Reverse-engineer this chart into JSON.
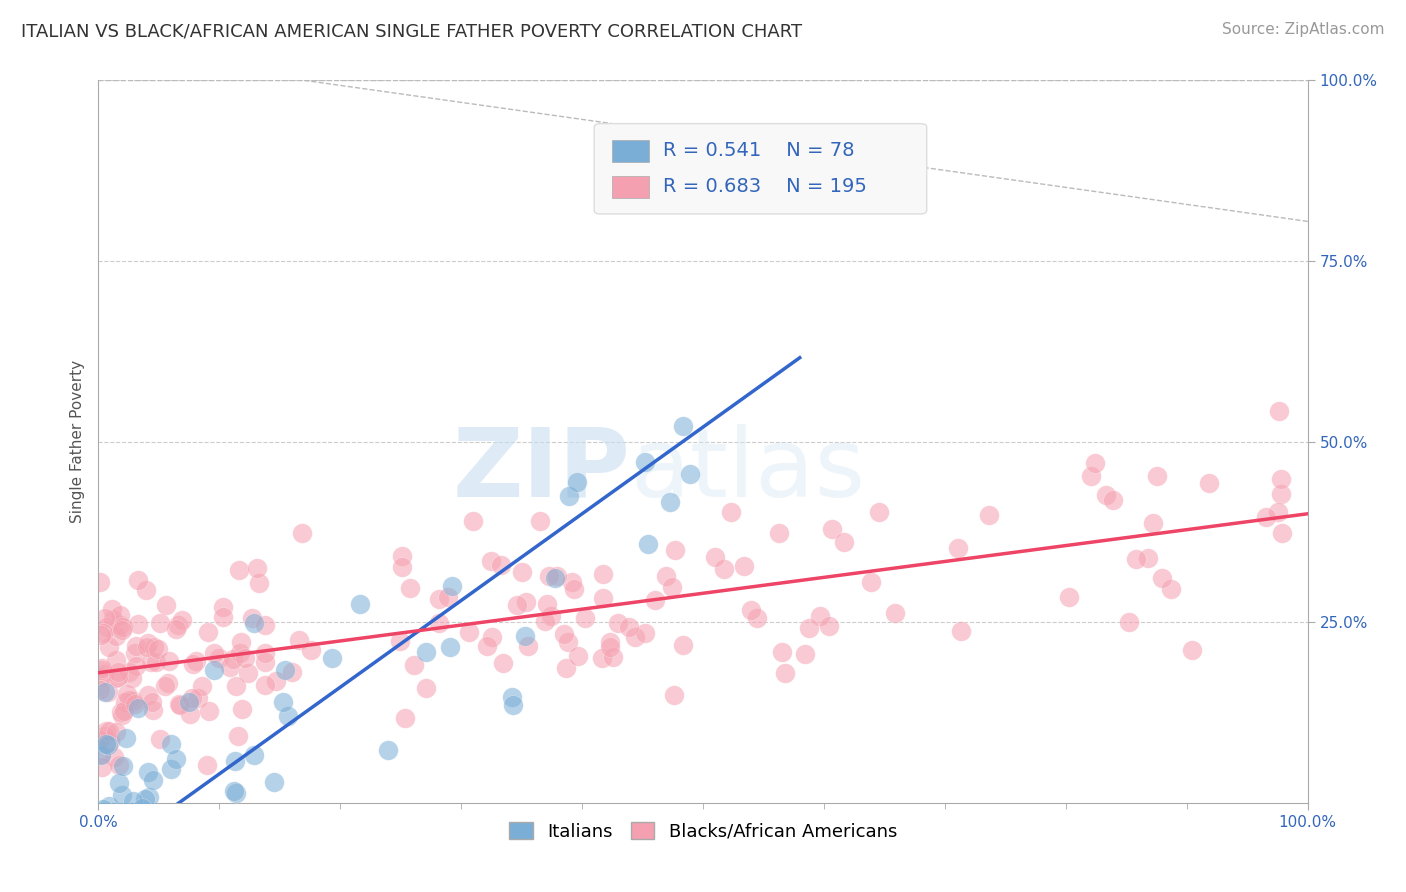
{
  "title": "ITALIAN VS BLACK/AFRICAN AMERICAN SINGLE FATHER POVERTY CORRELATION CHART",
  "source": "Source: ZipAtlas.com",
  "ylabel": "Single Father Poverty",
  "legend_label1": "Italians",
  "legend_label2": "Blacks/African Americans",
  "R1": "0.541",
  "N1": "78",
  "R2": "0.683",
  "N2": "195",
  "color1": "#7aaed6",
  "color2": "#f5a0b0",
  "line1_color": "#3366cc",
  "line2_color": "#ee4466",
  "diagonal_color": "#bbbbbb",
  "background_color": "#ffffff",
  "watermark_zip": "ZIP",
  "watermark_atlas": "atlas",
  "title_fontsize": 13,
  "source_fontsize": 11,
  "axis_label_fontsize": 11,
  "tick_fontsize": 11,
  "stats_fontsize": 14,
  "legend_fontsize": 13,
  "stat_color": "#3366bb"
}
